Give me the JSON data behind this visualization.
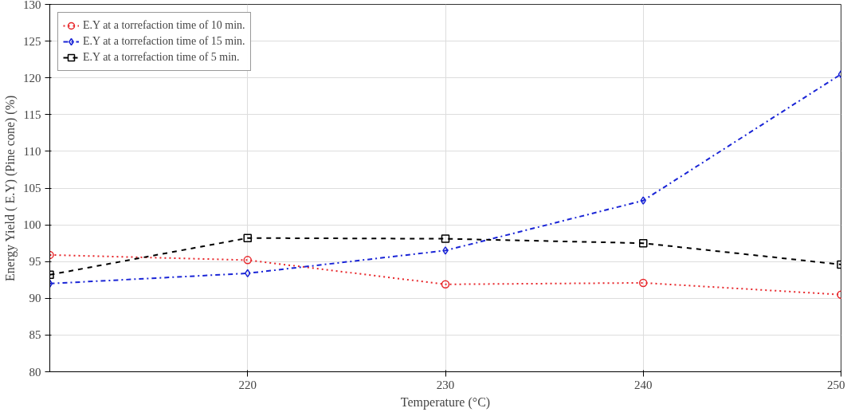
{
  "chart_data": {
    "type": "line",
    "xlabel": "Temperature (°C)",
    "ylabel": "Energy Yield ( E.Y) (Pine cone) (%)",
    "x": [
      210,
      220,
      230,
      240,
      250
    ],
    "series": [
      {
        "name": "E.Y at a torrefaction time of 10 min.",
        "color": "#e8262a",
        "values": [
          95.9,
          95.2,
          91.9,
          92.1,
          90.5
        ],
        "marker": "circle",
        "line_style": "dotted"
      },
      {
        "name": "E.Y at a torrefaction time of 15 min.",
        "color": "#1a25d6",
        "values": [
          92.0,
          93.4,
          96.5,
          103.3,
          120.5
        ],
        "marker": "diamond",
        "line_style": "dashdot"
      },
      {
        "name": "E.Y at a torrefaction time of 5 min.",
        "color": "#000000",
        "values": [
          93.2,
          98.2,
          98.1,
          97.5,
          94.6
        ],
        "marker": "square",
        "line_style": "dashed"
      }
    ],
    "xlim": [
      210,
      250
    ],
    "xticks": [
      220,
      230,
      240,
      250
    ],
    "ylim": [
      80,
      130
    ],
    "yticks": [
      80,
      85,
      90,
      95,
      100,
      105,
      110,
      115,
      120,
      125,
      130
    ],
    "grid": true,
    "legend": "top left"
  }
}
